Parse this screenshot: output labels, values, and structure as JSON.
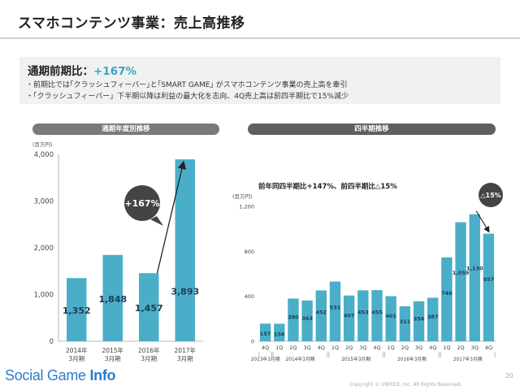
{
  "page": {
    "title": "スマホコンテンツ事業：売上高推移",
    "summary_label": "通期前期比：",
    "summary_value": "+167%",
    "bullets": [
      "・前期比では｢クラッシュフィーバー｣と｢SMART GAME｣ がスマホコンテンツ事業の売上高を牽引",
      "・「クラッシュフィーバー」下半期以降は利益の最大化を志向、4Q売上高は前四半期比で15%減少"
    ],
    "left_heading": "通期年度別推移",
    "right_heading": "四半期推移",
    "logo_text_1": "Social Game ",
    "logo_text_2": "Info",
    "copyright": "Copyright © UNITED, Inc. All Rights Reserved.",
    "page_number": "20"
  },
  "colors": {
    "bar": "#4baec9",
    "pill": "#7a7a7a",
    "accent": "#3aa6bf"
  },
  "chart_data": [
    {
      "type": "bar",
      "unit": "(百万円)",
      "categories": [
        "2014年\n3月期",
        "2015年\n3月期",
        "2016年\n3月期",
        "2017年\n3月期"
      ],
      "values": [
        1352,
        1848,
        1457,
        3893
      ],
      "labels": [
        "1,352",
        "1,848",
        "1,457",
        "3,893"
      ],
      "yticks": [
        0,
        1000,
        2000,
        3000,
        4000
      ],
      "ytick_labels": [
        "0",
        "1,000",
        "2,000",
        "3,000",
        "4,000"
      ],
      "ylim": [
        0,
        4000
      ],
      "grid": false,
      "callout": "+167%"
    },
    {
      "type": "bar",
      "unit": "(百万円)",
      "subtitle": "前年同四半期比+147%、前四半期比△15%",
      "categories": [
        "4Q",
        "1Q",
        "2Q",
        "3Q",
        "4Q",
        "1Q",
        "2Q",
        "3Q",
        "4Q",
        "1Q",
        "2Q",
        "3Q",
        "4Q",
        "1Q",
        "2Q",
        "3Q",
        "4Q"
      ],
      "values": [
        157,
        156,
        380,
        363,
        452,
        531,
        407,
        453,
        455,
        401,
        311,
        356,
        387,
        746,
        1059,
        1130,
        957
      ],
      "labels": [
        "157",
        "156",
        "380",
        "363",
        "452",
        "531",
        "407",
        "453",
        "455",
        "401",
        "311",
        "356",
        "387",
        "746",
        "1,059",
        "1,130",
        "957"
      ],
      "yticks": [
        0,
        400,
        800,
        1200
      ],
      "ytick_labels": [
        "0",
        "400",
        "800",
        "1,200"
      ],
      "ylim": [
        0,
        1200
      ],
      "grid": false,
      "groups": [
        {
          "label": "2013年3月期",
          "span": 1
        },
        {
          "label": "2014年3月期",
          "span": 4
        },
        {
          "label": "2015年3月期",
          "span": 4
        },
        {
          "label": "2016年3月期",
          "span": 4
        },
        {
          "label": "2017年3月期",
          "span": 4
        }
      ],
      "callout": "△15%"
    }
  ]
}
